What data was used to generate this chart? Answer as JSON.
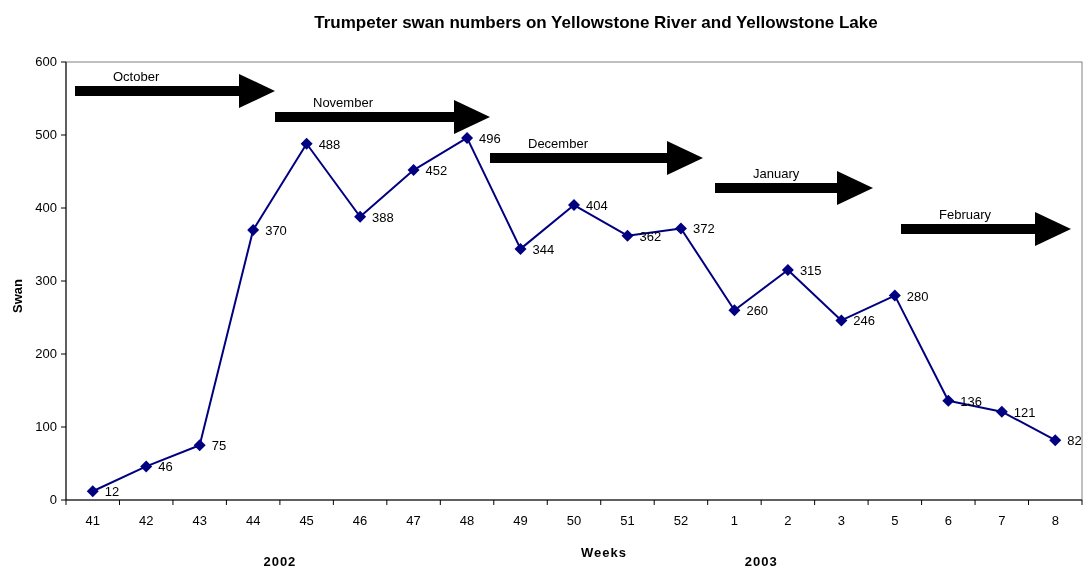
{
  "chart_data": {
    "type": "line",
    "title": "Trumpeter swan numbers on Yellowstone River and Yellowstone Lake",
    "xlabel": "Weeks",
    "ylabel": "Swan",
    "categories": [
      "41",
      "42",
      "43",
      "44",
      "45",
      "46",
      "47",
      "48",
      "49",
      "50",
      "51",
      "52",
      "1",
      "2",
      "3",
      "5",
      "6",
      "7",
      "8"
    ],
    "series": [
      {
        "color": "#000080",
        "values": [
          12,
          46,
          75,
          370,
          488,
          388,
          452,
          496,
          344,
          404,
          362,
          372,
          260,
          315,
          246,
          280,
          136,
          121,
          82
        ]
      }
    ],
    "ylim": [
      0,
      600
    ],
    "yticks": [
      0,
      100,
      200,
      300,
      400,
      500,
      600
    ],
    "grid": false,
    "marker": "diamond",
    "line_style": "solid",
    "data_labels": true,
    "annotations": [
      "October",
      "November",
      "December",
      "January",
      "February",
      "2002",
      "2003"
    ]
  }
}
